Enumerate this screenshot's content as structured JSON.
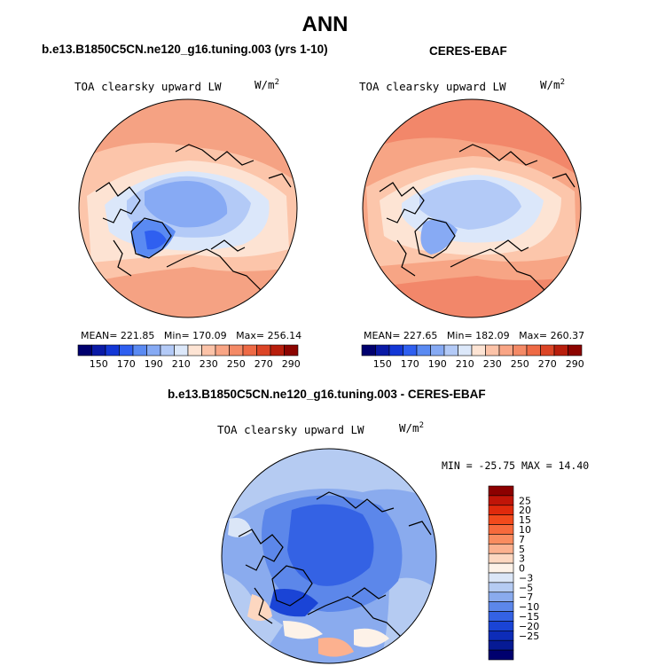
{
  "main_title": "ANN",
  "panels": {
    "left": {
      "title": "b.e13.B1850C5CN.ne120_g16.tuning.003 (yrs 1-10)",
      "variable": "TOA clearsky upward LW",
      "units": "W/m",
      "units_sup": "2",
      "mean_label": "MEAN=",
      "mean": "221.85",
      "min_label": "Min=",
      "min": "170.09",
      "max_label": "Max=",
      "max": "256.14"
    },
    "right": {
      "title": "CERES-EBAF",
      "variable": "TOA clearsky upward LW",
      "units": "W/m",
      "units_sup": "2",
      "mean_label": "MEAN=",
      "mean": "227.65",
      "min_label": "Min=",
      "min": "182.09",
      "max_label": "Max=",
      "max": "260.37"
    },
    "diff": {
      "title": "b.e13.B1850C5CN.ne120_g16.tuning.003 - CERES-EBAF",
      "variable": "TOA clearsky upward LW",
      "units": "W/m",
      "units_sup": "2",
      "minmax": "MIN = -25.75 MAX =  14.40"
    }
  },
  "colorbar_abs": {
    "labels": [
      "150",
      "170",
      "190",
      "210",
      "230",
      "250",
      "270",
      "290"
    ],
    "colors": [
      "#00006e",
      "#0a1aa6",
      "#1337d6",
      "#2f5ff0",
      "#5a8af2",
      "#86aaf4",
      "#b3caf7",
      "#dce8fa",
      "#fde4d4",
      "#fcc3a8",
      "#f9a585",
      "#f48a66",
      "#ee6a45",
      "#dc4526",
      "#b81e0c",
      "#8c0400"
    ]
  },
  "colorbar_diff": {
    "labels": [
      "25",
      "20",
      "15",
      "10",
      "7",
      "5",
      "3",
      "0",
      "−3",
      "−5",
      "−7",
      "−10",
      "−15",
      "−20",
      "−25"
    ],
    "colors": [
      "#8c0000",
      "#c01508",
      "#e02a0c",
      "#f24a1c",
      "#f76a3c",
      "#fa8c5f",
      "#fcb18f",
      "#fdd7c0",
      "#fdf2e8",
      "#dbe6f7",
      "#b5cbf2",
      "#8aabee",
      "#5c87ea",
      "#3462e4",
      "#1a44d6",
      "#0d2cb8",
      "#061a94",
      "#00006e"
    ]
  },
  "chart_data": [
    {
      "type": "heatmap",
      "title": "b.e13.B1850C5CN.ne120_g16.tuning.003 (yrs 1-10)",
      "variable": "TOA clearsky upward LW",
      "units": "W/m2",
      "projection": "north polar stereographic",
      "stats": {
        "mean": 221.85,
        "min": 170.09,
        "max": 256.14
      },
      "contour_levels": [
        150,
        160,
        170,
        180,
        190,
        200,
        210,
        220,
        230,
        240,
        250,
        260,
        270,
        280,
        290
      ]
    },
    {
      "type": "heatmap",
      "title": "CERES-EBAF",
      "variable": "TOA clearsky upward LW",
      "units": "W/m2",
      "projection": "north polar stereographic",
      "stats": {
        "mean": 227.65,
        "min": 182.09,
        "max": 260.37
      },
      "contour_levels": [
        150,
        160,
        170,
        180,
        190,
        200,
        210,
        220,
        230,
        240,
        250,
        260,
        270,
        280,
        290
      ]
    },
    {
      "type": "heatmap",
      "title": "b.e13.B1850C5CN.ne120_g16.tuning.003 - CERES-EBAF",
      "variable": "TOA clearsky upward LW",
      "units": "W/m2",
      "projection": "north polar stereographic",
      "stats": {
        "min": -25.75,
        "max": 14.4
      },
      "contour_levels": [
        -25,
        -20,
        -15,
        -10,
        -7,
        -5,
        -3,
        0,
        3,
        5,
        7,
        10,
        15,
        20,
        25
      ]
    }
  ]
}
